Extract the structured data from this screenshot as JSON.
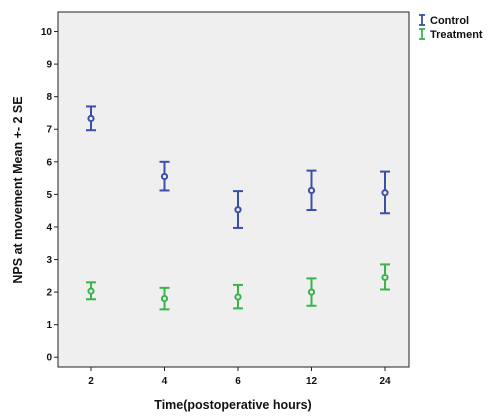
{
  "chart_data": {
    "type": "scatter",
    "subtype": "error-bar",
    "categories": [
      "2",
      "4",
      "6",
      "12",
      "24"
    ],
    "xlabel": "Time(postoperative hours)",
    "ylabel": "NPS at movement Mean +- 2 SE",
    "ylim": [
      -0.3,
      10.6
    ],
    "yticks": [
      0,
      1,
      2,
      3,
      4,
      5,
      6,
      7,
      8,
      9,
      10
    ],
    "grid": false,
    "legend_position": "top-right, outside plot",
    "plot_background": "#efefef",
    "series": [
      {
        "name": "Control",
        "color": "#3b4fa8",
        "means": [
          7.33,
          5.55,
          4.53,
          5.12,
          5.05
        ],
        "lower": [
          6.97,
          5.12,
          3.97,
          4.52,
          4.42
        ],
        "upper": [
          7.7,
          6.0,
          5.1,
          5.73,
          5.7
        ]
      },
      {
        "name": "Treatment",
        "color": "#39b44a",
        "means": [
          2.03,
          1.8,
          1.85,
          2.0,
          2.45
        ],
        "lower": [
          1.78,
          1.47,
          1.5,
          1.58,
          2.08
        ],
        "upper": [
          2.3,
          2.13,
          2.22,
          2.42,
          2.85
        ]
      }
    ]
  }
}
